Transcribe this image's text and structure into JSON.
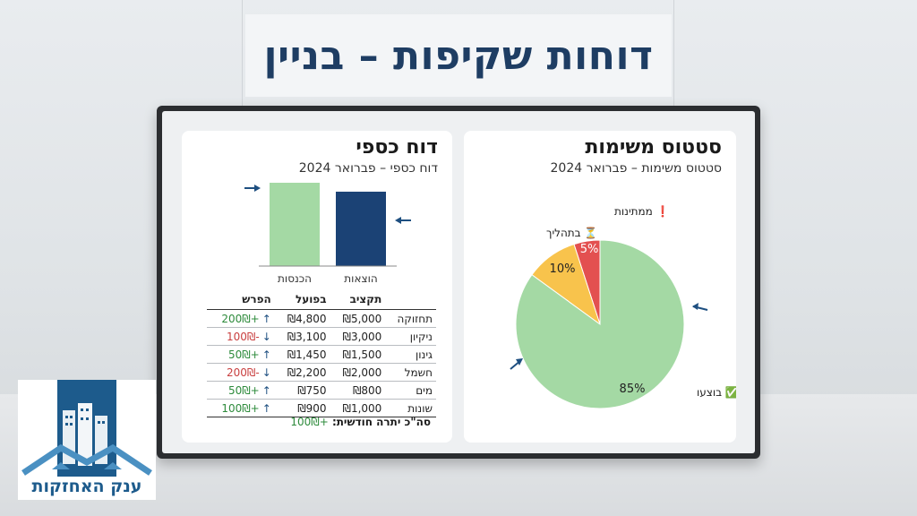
{
  "page": {
    "title": "דוחות שקיפות – בניין"
  },
  "tasks_card": {
    "title": "סטטוס משימות",
    "subtitle": "סטטוס משימות – פברואר 2024"
  },
  "finance_card": {
    "title": "דוח כספי",
    "subtitle": "דוח כספי – פברואר 2024",
    "table_headers": {
      "diff": "הפרש",
      "actual": "בפועל",
      "budget": "תקציב",
      "category": ""
    },
    "rows": [
      {
        "category": "תחזוקה",
        "budget": "₪5,000",
        "actual": "₪4,800",
        "diff": "+200₪",
        "direction": "up"
      },
      {
        "category": "ניקיון",
        "budget": "₪3,000",
        "actual": "₪3,100",
        "diff": "-100₪",
        "direction": "down"
      },
      {
        "category": "גינון",
        "budget": "₪1,500",
        "actual": "₪1,450",
        "diff": "+50₪",
        "direction": "up"
      },
      {
        "category": "חשמל",
        "budget": "₪2,000",
        "actual": "₪2,200",
        "diff": "-200₪",
        "direction": "down"
      },
      {
        "category": "מים",
        "budget": "₪800",
        "actual": "₪750",
        "diff": "+50₪",
        "direction": "up"
      },
      {
        "category": "שונות",
        "budget": "₪1,000",
        "actual": "₪900",
        "diff": "+100₪",
        "direction": "up"
      }
    ],
    "total_label": "סה\"כ יתרה חודשית:",
    "total_value": "+100₪"
  },
  "chart_data": [
    {
      "type": "pie",
      "slices": [
        {
          "label": "✅ בוצעו",
          "value": 85,
          "value_label": "85%",
          "color": "#a4d9a4"
        },
        {
          "label": "⏳ בתהליך",
          "value": 10,
          "value_label": "10%",
          "color": "#f8c34c"
        },
        {
          "label": "❗ ממתינות",
          "value": 5,
          "value_label": "5%",
          "color": "#e35050"
        }
      ]
    },
    {
      "type": "bar",
      "categories": [
        "הכנסות",
        "הוצאות"
      ],
      "values": [
        11200,
        10000
      ],
      "colors": [
        "#a4d9a4",
        "#1b4275"
      ],
      "ylim": [
        0,
        11200
      ]
    }
  ],
  "logo": {
    "text": "ענק האחזקות"
  },
  "colors": {
    "title": "#1e3d63",
    "accent": "#1e4f80",
    "positive": "#2e8b3c",
    "negative": "#c94040"
  }
}
